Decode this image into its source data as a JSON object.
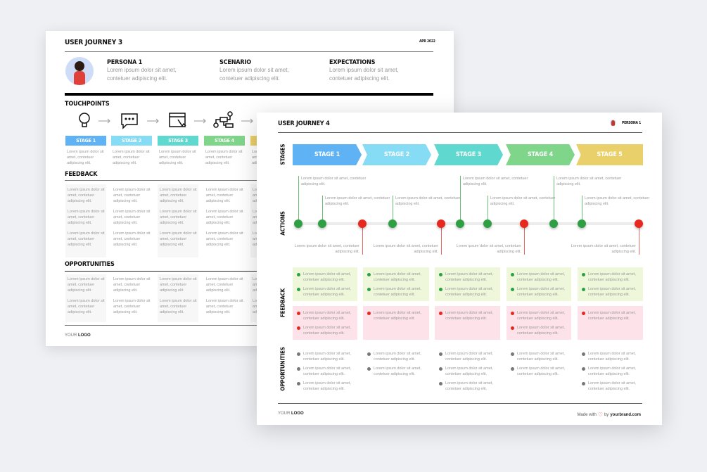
{
  "back": {
    "title": "USER JOURNEY 3",
    "date": "APR 2022",
    "persona": {
      "heading": "PERSONA 1",
      "text": "Lorem ipsum dolor sit amet, contetuer adipiscing elit."
    },
    "scenario": {
      "heading": "SCENARIO",
      "text": "Lorem ipsum dolor sit amet, contetuer adipiscing elit."
    },
    "expectations": {
      "heading": "EXPECTATIONS",
      "text": "Lorem ipsum dolor sit amet, contetuer adipiscing elit."
    },
    "touchpoints_label": "TOUCHPOINTS",
    "touchpoint_icons": [
      "lightbulb-icon",
      "chat-bubble-icon",
      "browser-cursor-icon",
      "flowchart-icon"
    ],
    "stages": [
      {
        "label": "STAGE 1",
        "color": "#5fb3f5"
      },
      {
        "label": "STAGE 2",
        "color": "#86dcf5"
      },
      {
        "label": "STAGE 3",
        "color": "#5fd9cf"
      },
      {
        "label": "STAGE 4",
        "color": "#7fd68a"
      },
      {
        "label": "STAGE 5",
        "color": "#ead06a"
      }
    ],
    "stage_text": "Lorem ipsum dolor sit amet, contetuer adipiscing elit.",
    "feedback_label": "FEEDBACK",
    "feedback_cell": "Lorem ipsum dolor sit amet, contetuer adipiscing elit.",
    "opportunities_label": "OPPORTUNITIES",
    "opportunity_cell": "Lorem ipsum dolor sit amet, contetuer adipiscing elit.",
    "logo_prefix": "YOUR",
    "logo_bold": "LOGO"
  },
  "front": {
    "title": "USER JOURNEY 4",
    "persona_label": "PERSONA 1",
    "row_labels": {
      "stages": "STAGES",
      "actions": "ACTIONS",
      "feedback": "FEEDBACK",
      "opportunities": "OPPORTUNITIES"
    },
    "stages": [
      {
        "label": "STAGE 1",
        "color": "#5fb3f5"
      },
      {
        "label": "STAGE 2",
        "color": "#86dcf5"
      },
      {
        "label": "STAGE 3",
        "color": "#5fd9cf"
      },
      {
        "label": "STAGE 4",
        "color": "#7fd68a"
      },
      {
        "label": "STAGE 5",
        "color": "#ead06a"
      }
    ],
    "actions": [
      {
        "status": "positive",
        "text": "Lorem ipsum dolor sit amet, contetuer adipiscing elit."
      },
      {
        "status": "positive",
        "text": "Lorem ipsum dolor sit amet, contetuer adipiscing elit."
      },
      {
        "status": "negative",
        "text": "Lorem ipsum dolor sit amet, contetuer adipiscing elit."
      },
      {
        "status": "positive",
        "text": "Lorem ipsum dolor sit amet, contetuer adipiscing elit."
      },
      {
        "status": "negative",
        "text": "Lorem ipsum dolor sit amet, contetuer adipiscing elit."
      },
      {
        "status": "positive",
        "text": "Lorem ipsum dolor sit amet, contetuer adipiscing elit."
      },
      {
        "status": "positive",
        "text": "Lorem ipsum dolor sit amet, contetuer adipiscing elit."
      },
      {
        "status": "negative",
        "text": "Lorem ipsum dolor sit amet, contetuer adipiscing elit."
      },
      {
        "status": "positive",
        "text": "Lorem ipsum dolor sit amet, contetuer adipiscing elit."
      },
      {
        "status": "positive",
        "text": "Lorem ipsum dolor sit amet, contetuer adipiscing elit."
      },
      {
        "status": "negative",
        "text": "Lorem ipsum dolor sit amet, contetuer adipiscing elit."
      }
    ],
    "feedback_positive": [
      [
        "Lorem ipsum dolor sit amet, contetuer adipiscing elit.",
        "Lorem ipsum dolor sit amet, contetuer adipiscing elit."
      ],
      [
        "Lorem ipsum dolor sit amet, contetuer adipiscing elit.",
        "Lorem ipsum dolor sit amet, contetuer adipiscing elit."
      ],
      [
        "Lorem ipsum dolor sit amet, contetuer adipiscing elit.",
        "Lorem ipsum dolor sit amet, contetuer adipiscing elit."
      ],
      [
        "Lorem ipsum dolor sit amet, contetuer adipiscing elit.",
        "Lorem ipsum dolor sit amet, contetuer adipiscing elit."
      ],
      [
        "Lorem ipsum dolor sit amet, contetuer adipiscing elit.",
        "Lorem ipsum dolor sit amet, contetuer adipiscing elit."
      ]
    ],
    "feedback_negative": [
      [
        "Lorem ipsum dolor sit amet, contetuer adipiscing elit.",
        "Lorem ipsum dolor sit amet, contetuer adipiscing elit."
      ],
      [
        "Lorem ipsum dolor sit amet, contetuer adipiscing elit."
      ],
      [
        "Lorem ipsum dolor sit amet, contetuer adipiscing elit."
      ],
      [
        "Lorem ipsum dolor sit amet, contetuer adipiscing elit.",
        "Lorem ipsum dolor sit amet, contetuer adipiscing elit."
      ],
      [
        "Lorem ipsum dolor sit amet, contetuer adipiscing elit."
      ]
    ],
    "opportunities": [
      [
        "Lorem ipsum dolor sit amet, contetuer adipiscing elit.",
        "Lorem ipsum dolor sit amet, contetuer adipiscing elit.",
        "Lorem ipsum dolor sit amet, contetuer adipiscing elit."
      ],
      [
        "Lorem ipsum dolor sit amet, contetuer adipiscing elit.",
        "Lorem ipsum dolor sit amet, contetuer adipiscing elit."
      ],
      [
        "Lorem ipsum dolor sit amet, contetuer adipiscing elit.",
        "Lorem ipsum dolor sit amet, contetuer adipiscing elit.",
        "Lorem ipsum dolor sit amet, contetuer adipiscing elit."
      ],
      [
        "Lorem ipsum dolor sit amet, contetuer adipiscing elit.",
        "Lorem ipsum dolor sit amet, contetuer adipiscing elit."
      ],
      [
        "Lorem ipsum dolor sit amet, contetuer adipiscing elit.",
        "Lorem ipsum dolor sit amet, contetuer adipiscing elit.",
        "Lorem ipsum dolor sit amet, contetuer adipiscing elit."
      ]
    ],
    "footer": {
      "logo_prefix": "YOUR",
      "logo_bold": "LOGO",
      "made_with": "Made with",
      "by": "by",
      "brand": "yourbrand.com",
      "heart_icon": "heart-icon"
    },
    "colors": {
      "positive": "#2ea043",
      "negative": "#e8281e",
      "neutral": "#777777",
      "positive_bg": "#eef7d9",
      "negative_bg": "#fde2ea"
    }
  }
}
